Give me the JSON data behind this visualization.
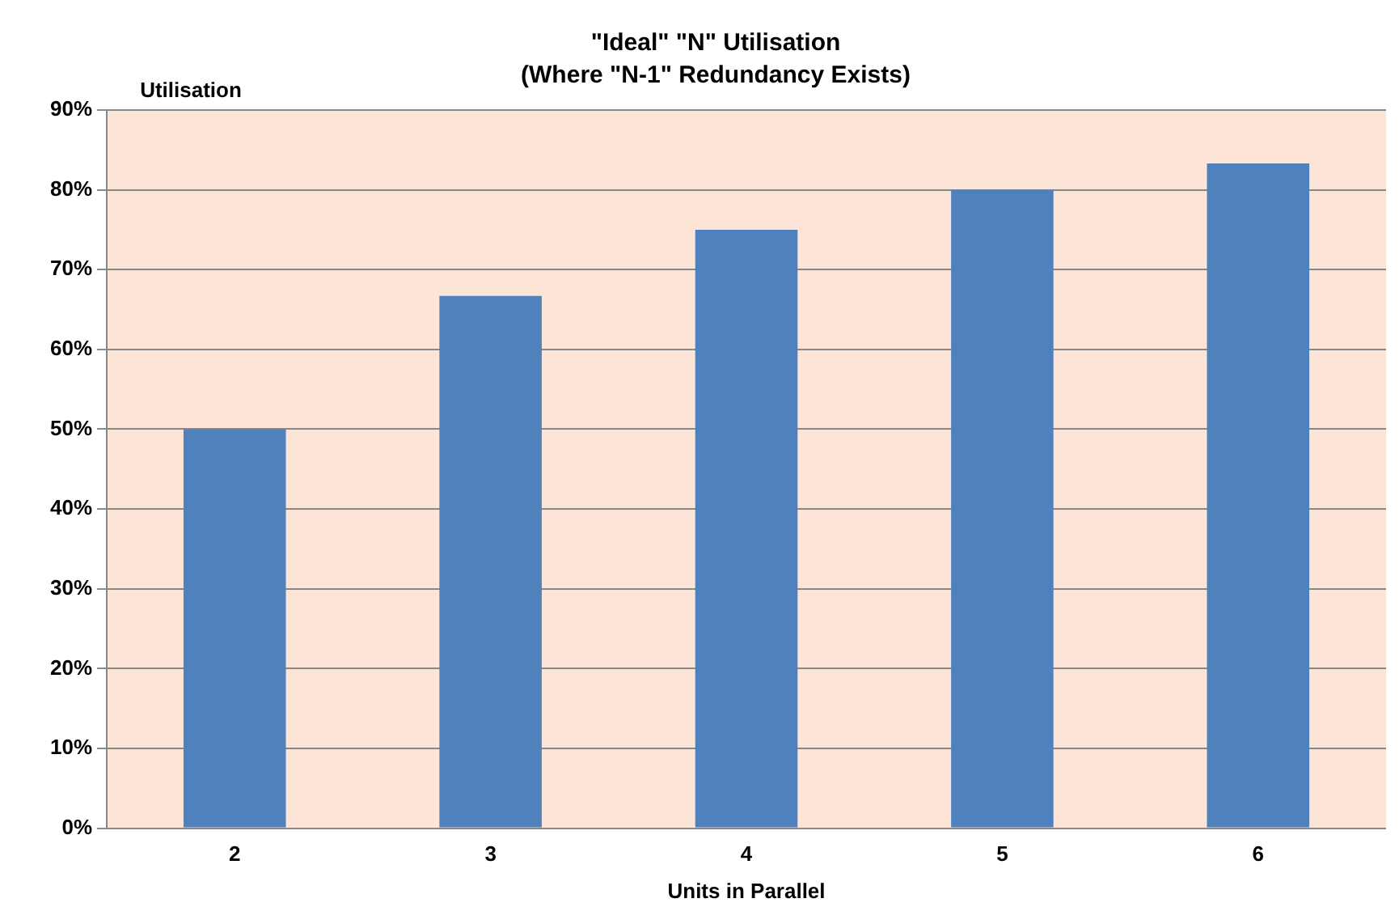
{
  "chart_data": {
    "type": "bar",
    "title": "\"Ideal\" \"N\" Utilisation",
    "subtitle": "(Where \"N-1\" Redundancy Exists)",
    "xlabel": "Units in Parallel",
    "ylabel": "Utilisation",
    "categories": [
      "2",
      "3",
      "4",
      "5",
      "6"
    ],
    "values": [
      50,
      66.7,
      75,
      80,
      83.3
    ],
    "color": "#4f81bd",
    "ylim": [
      0,
      90
    ],
    "yticks": [
      {
        "value": 0,
        "label": "0%"
      },
      {
        "value": 10,
        "label": "10%"
      },
      {
        "value": 20,
        "label": "20%"
      },
      {
        "value": 30,
        "label": "30%"
      },
      {
        "value": 40,
        "label": "40%"
      },
      {
        "value": 50,
        "label": "50%"
      },
      {
        "value": 60,
        "label": "60%"
      },
      {
        "value": 70,
        "label": "70%"
      },
      {
        "value": 80,
        "label": "80%"
      },
      {
        "value": 90,
        "label": "90%"
      }
    ],
    "grid": "y",
    "legend": false
  }
}
